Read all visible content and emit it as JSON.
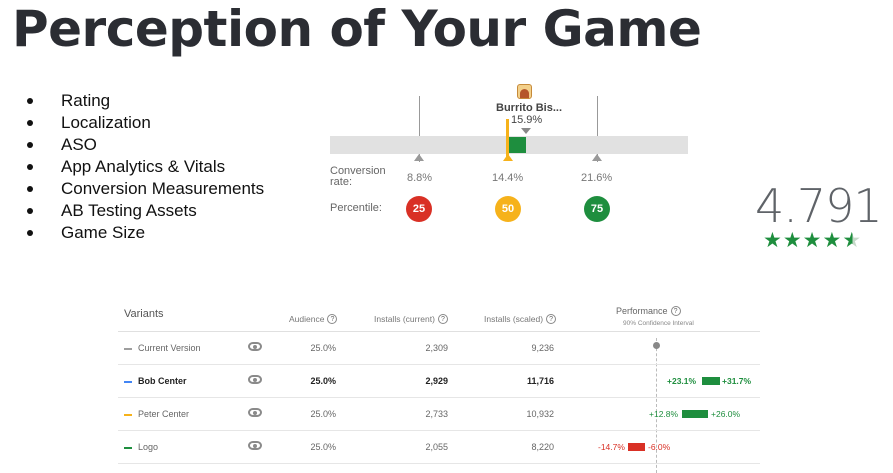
{
  "slide": {
    "title": "Perception of Your Game",
    "bullets": [
      "Rating",
      "Localization",
      "ASO",
      "App Analytics & Vitals",
      "Conversion Measurements",
      "AB Testing Assets",
      "Game Size"
    ]
  },
  "conversion": {
    "game_name": "Burrito Bis...",
    "game_rate": "15.9%",
    "rate_label": "Conversion rate:",
    "percentile_label": "Percentile:",
    "markers": [
      {
        "rate": "8.8%",
        "percentile": "25",
        "color": "#d93025"
      },
      {
        "rate": "14.4%",
        "percentile": "50",
        "color": "#f6b21b"
      },
      {
        "rate": "21.6%",
        "percentile": "75",
        "color": "#1e8e3e"
      }
    ],
    "colors": {
      "track": "#e1e1e1",
      "game_bar": "#1e8e3e",
      "median_line": "#f6b21b"
    }
  },
  "rating": {
    "value": "4.791",
    "stars": 4.791,
    "star_color": "#1e8e3e",
    "star_glyph": "★"
  },
  "experiment": {
    "headers": {
      "variants": "Variants",
      "audience": "Audience",
      "installs_current": "Installs (current)",
      "installs_scaled": "Installs (scaled)",
      "performance": "Performance",
      "performance_sub": "90% Confidence Interval",
      "help": "?"
    },
    "rows": [
      {
        "name": "Current Version",
        "color": "#9e9e9e",
        "audience": "25.0%",
        "installs_current": "2,309",
        "installs_scaled": "9,236",
        "low": "",
        "high": "",
        "bold": false
      },
      {
        "name": "Bob Center",
        "color": "#4285f4",
        "audience": "25.0%",
        "installs_current": "2,929",
        "installs_scaled": "11,716",
        "low": "+23.1%",
        "high": "+31.7%",
        "bold": true
      },
      {
        "name": "Peter Center",
        "color": "#f6b21b",
        "audience": "25.0%",
        "installs_current": "2,733",
        "installs_scaled": "10,932",
        "low": "+12.8%",
        "high": "+26.0%",
        "bold": false
      },
      {
        "name": "Logo",
        "color": "#1e8e3e",
        "audience": "25.0%",
        "installs_current": "2,055",
        "installs_scaled": "8,220",
        "low": "-14.7%",
        "high": "-6.0%",
        "bold": false
      }
    ],
    "colors": {
      "positive": "#1e8e3e",
      "negative": "#d93025"
    }
  }
}
